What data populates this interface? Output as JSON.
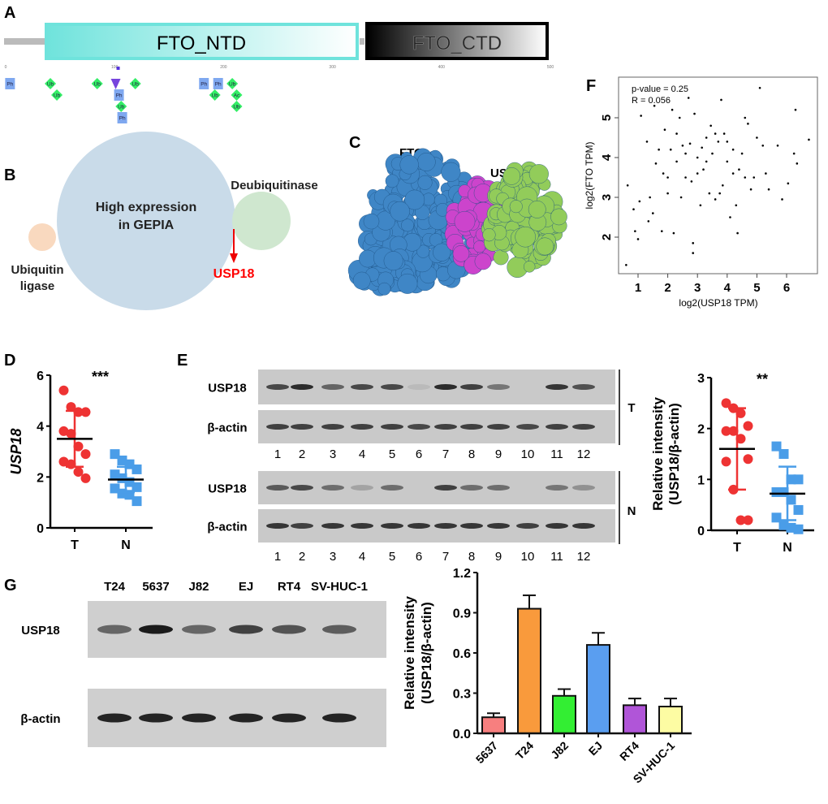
{
  "panels": {
    "A": {
      "label": "A",
      "domains": [
        {
          "name": "FTO_NTD",
          "start": 32,
          "end": 323,
          "colors": [
            "#6fe3dc",
            "#ffffff"
          ]
        },
        {
          "name": "FTO_CTD",
          "start": 330,
          "end": 497,
          "colors": [
            "#000000",
            "#ffffff"
          ]
        }
      ],
      "ticks": [
        "0",
        "100",
        "200",
        "300",
        "400",
        "500"
      ],
      "modifications": [
        {
          "type": "Ph",
          "pos": 4,
          "row": 0
        },
        {
          "type": "Ub",
          "pos": 41,
          "row": 0
        },
        {
          "type": "Ub",
          "pos": 47,
          "row": 1
        },
        {
          "type": "Ub",
          "pos": 84,
          "row": 0
        },
        {
          "type": "N",
          "pos": 101,
          "row": 0
        },
        {
          "type": "Ph",
          "pos": 104,
          "row": 1
        },
        {
          "type": "Ub",
          "pos": 106,
          "row": 2
        },
        {
          "type": "Ph",
          "pos": 107,
          "row": 3
        },
        {
          "type": "Ub",
          "pos": 119,
          "row": 0
        },
        {
          "type": "Ph",
          "pos": 182,
          "row": 0
        },
        {
          "type": "Ph",
          "pos": 195,
          "row": 0
        },
        {
          "type": "Ub",
          "pos": 208,
          "row": 0
        },
        {
          "type": "Ub",
          "pos": 192,
          "row": 1
        },
        {
          "type": "Ac",
          "pos": 212,
          "row": 1
        },
        {
          "type": "Ub",
          "pos": 212,
          "row": 2
        }
      ]
    },
    "B": {
      "label": "B",
      "main_circle": "High expression in GEPIA",
      "left_circle": "Ubiquitin ligase",
      "right_circle": "Deubiquitinase",
      "highlight": "USP18",
      "colors": {
        "main": "#c9dbe9",
        "left": "#f9d9bf",
        "right": "#cfe7cf",
        "highlight": "#ff0000"
      }
    },
    "C": {
      "label": "C",
      "protein1": "FTO",
      "protein2": "USP18",
      "colors": {
        "fto": "#3f86c6",
        "usp18": "#92cc5a",
        "interface": "#cc44cc"
      }
    },
    "E": {
      "label": "E",
      "rows": [
        {
          "label": "USP18",
          "group": "T",
          "intensity": [
            0.7,
            0.85,
            0.55,
            0.7,
            0.7,
            0.08,
            0.85,
            0.75,
            0.45,
            0,
            0.8,
            0.65
          ]
        },
        {
          "label": "β-actin",
          "group": "T",
          "intensity": [
            0.75,
            0.75,
            0.75,
            0.75,
            0.75,
            0.7,
            0.75,
            0.75,
            0.75,
            0.7,
            0.75,
            0.75
          ]
        },
        {
          "label": "USP18",
          "group": "N",
          "intensity": [
            0.6,
            0.7,
            0.5,
            0.2,
            0.5,
            0,
            0.75,
            0.5,
            0.5,
            0,
            0.45,
            0.3
          ]
        },
        {
          "label": "β-actin",
          "group": "N",
          "intensity": [
            0.8,
            0.75,
            0.8,
            0.8,
            0.8,
            0.8,
            0.8,
            0.8,
            0.8,
            0.75,
            0.8,
            0.8
          ]
        }
      ],
      "lanes": [
        "1",
        "2",
        "3",
        "4",
        "5",
        "6",
        "7",
        "8",
        "9",
        "10",
        "11",
        "12"
      ],
      "groups": [
        "T",
        "N"
      ]
    },
    "G": {
      "label": "G",
      "lanes": [
        "T24",
        "5637",
        "J82",
        "EJ",
        "RT4",
        "SV-HUC-1"
      ],
      "rows": [
        {
          "label": "USP18",
          "intensity": [
            0.55,
            0.95,
            0.55,
            0.75,
            0.65,
            0.6
          ]
        },
        {
          "label": "β-actin",
          "intensity": [
            0.9,
            0.9,
            0.9,
            0.9,
            0.9,
            0.9
          ]
        }
      ]
    }
  },
  "chart_data": [
    {
      "panel": "D",
      "type": "scatter",
      "ylabel": "USP18",
      "categories": [
        "T",
        "N"
      ],
      "yticks": [
        "0",
        "2",
        "4",
        "6"
      ],
      "ylim": [
        0,
        6
      ],
      "significance": "***",
      "series": [
        {
          "category": "T",
          "color": "#ee3333",
          "marker": "circle",
          "values": [
            5.4,
            4.75,
            4.55,
            4.55,
            3.8,
            3.7,
            3.2,
            2.9,
            2.6,
            2.5,
            2.2,
            1.95
          ],
          "mean": 3.5,
          "sd": [
            2.4,
            4.6
          ]
        },
        {
          "category": "N",
          "color": "#4a9de8",
          "marker": "square",
          "values": [
            2.9,
            2.65,
            2.5,
            2.3,
            2.1,
            1.95,
            1.8,
            1.6,
            1.55,
            1.35,
            1.3,
            1.05
          ],
          "mean": 1.9,
          "sd": [
            1.4,
            2.4
          ]
        }
      ]
    },
    {
      "panel": "E",
      "type": "scatter",
      "ylabel": "Relative intensity (USP18/β-actin)",
      "ylabel_lines": [
        "Relative intensity",
        "(USP18/β-actin)"
      ],
      "categories": [
        "T",
        "N"
      ],
      "yticks": [
        "0",
        "1",
        "2",
        "3"
      ],
      "ylim": [
        0,
        3
      ],
      "significance": "**",
      "series": [
        {
          "category": "T",
          "color": "#ee3333",
          "marker": "circle",
          "values": [
            2.5,
            2.4,
            2.3,
            2.05,
            1.95,
            1.95,
            1.8,
            1.4,
            1.35,
            0.8,
            0.2,
            0.2
          ],
          "mean": 1.6,
          "sd": [
            0.8,
            2.4
          ]
        },
        {
          "category": "N",
          "color": "#4a9de8",
          "marker": "square",
          "values": [
            1.65,
            1.5,
            1.0,
            1.0,
            0.75,
            0.75,
            0.6,
            0.4,
            0.25,
            0.1,
            0.05,
            0.02
          ],
          "mean": 0.72,
          "sd": [
            0.2,
            1.25
          ]
        }
      ]
    },
    {
      "panel": "F",
      "type": "scatter",
      "xlabel": "log2(USP18 TPM)",
      "ylabel": "log2(FTO TPM)",
      "xticks": [
        "1",
        "2",
        "3",
        "4",
        "5",
        "6"
      ],
      "yticks": [
        "2",
        "3",
        "4",
        "5"
      ],
      "xlim": [
        0.5,
        6.9
      ],
      "ylim": [
        1.2,
        5.8
      ],
      "annotations": [
        "p-value = 0.25",
        "R = 0.056"
      ],
      "points": [
        [
          0.6,
          1.3
        ],
        [
          0.65,
          3.3
        ],
        [
          0.85,
          2.7
        ],
        [
          0.9,
          2.15
        ],
        [
          1.0,
          1.95
        ],
        [
          1.05,
          2.9
        ],
        [
          1.1,
          5.05
        ],
        [
          1.3,
          4.4
        ],
        [
          1.35,
          2.4
        ],
        [
          1.4,
          3.0
        ],
        [
          1.55,
          5.3
        ],
        [
          1.6,
          3.85
        ],
        [
          1.8,
          2.15
        ],
        [
          1.85,
          3.6
        ],
        [
          1.9,
          4.7
        ],
        [
          2.0,
          3.1
        ],
        [
          2.1,
          4.2
        ],
        [
          2.15,
          5.2
        ],
        [
          2.2,
          2.1
        ],
        [
          2.3,
          3.9
        ],
        [
          2.4,
          5.0
        ],
        [
          2.5,
          4.3
        ],
        [
          2.6,
          3.5
        ],
        [
          2.7,
          5.5
        ],
        [
          2.8,
          3.4
        ],
        [
          2.85,
          1.6
        ],
        [
          2.85,
          1.85
        ],
        [
          2.9,
          5.1
        ],
        [
          3.0,
          4.0
        ],
        [
          3.1,
          2.8
        ],
        [
          3.2,
          3.7
        ],
        [
          3.3,
          4.5
        ],
        [
          3.4,
          3.1
        ],
        [
          3.5,
          4.1
        ],
        [
          3.6,
          2.95
        ],
        [
          3.7,
          4.4
        ],
        [
          3.8,
          5.45
        ],
        [
          3.85,
          3.3
        ],
        [
          3.9,
          4.6
        ],
        [
          4.0,
          3.9
        ],
        [
          4.1,
          2.5
        ],
        [
          4.2,
          4.2
        ],
        [
          4.3,
          2.8
        ],
        [
          4.35,
          2.1
        ],
        [
          4.4,
          3.7
        ],
        [
          4.5,
          4.1
        ],
        [
          4.6,
          5.0
        ],
        [
          4.7,
          4.85
        ],
        [
          4.8,
          3.2
        ],
        [
          4.9,
          3.5
        ],
        [
          5.0,
          4.5
        ],
        [
          5.1,
          5.75
        ],
        [
          5.2,
          4.3
        ],
        [
          5.3,
          3.6
        ],
        [
          5.4,
          3.2
        ],
        [
          5.7,
          4.3
        ],
        [
          5.85,
          2.95
        ],
        [
          6.05,
          3.35
        ],
        [
          6.25,
          4.1
        ],
        [
          6.3,
          5.2
        ],
        [
          6.35,
          3.85
        ],
        [
          6.75,
          4.45
        ],
        [
          1.7,
          4.2
        ],
        [
          2.3,
          4.6
        ],
        [
          2.6,
          4.1
        ],
        [
          3.0,
          3.6
        ],
        [
          3.3,
          3.9
        ],
        [
          3.6,
          4.6
        ],
        [
          4.0,
          4.4
        ],
        [
          4.2,
          3.6
        ],
        [
          4.6,
          3.5
        ],
        [
          2.0,
          3.5
        ],
        [
          1.5,
          2.6
        ],
        [
          2.45,
          3.0
        ],
        [
          3.15,
          4.25
        ],
        [
          3.75,
          3.1
        ],
        [
          2.75,
          4.35
        ],
        [
          3.45,
          4.8
        ]
      ]
    },
    {
      "panel": "G",
      "type": "bar",
      "ylabel": "Relative intensity (USP18/β-actin)",
      "ylabel_lines": [
        "Relative intensity",
        "(USP18/β-actin)"
      ],
      "categories": [
        "5637",
        "T24",
        "J82",
        "EJ",
        "RT4",
        "SV-HUC-1"
      ],
      "values": [
        0.12,
        0.93,
        0.28,
        0.66,
        0.21,
        0.2
      ],
      "errors": [
        0.03,
        0.1,
        0.05,
        0.09,
        0.05,
        0.06
      ],
      "colors": [
        "#f77f7f",
        "#f99a3c",
        "#33ee33",
        "#5a9ef0",
        "#b055d8",
        "#fdfca3"
      ],
      "yticks": [
        "0.0",
        "0.3",
        "0.6",
        "0.9",
        "1.2"
      ],
      "ylim": [
        0,
        1.2
      ]
    }
  ]
}
